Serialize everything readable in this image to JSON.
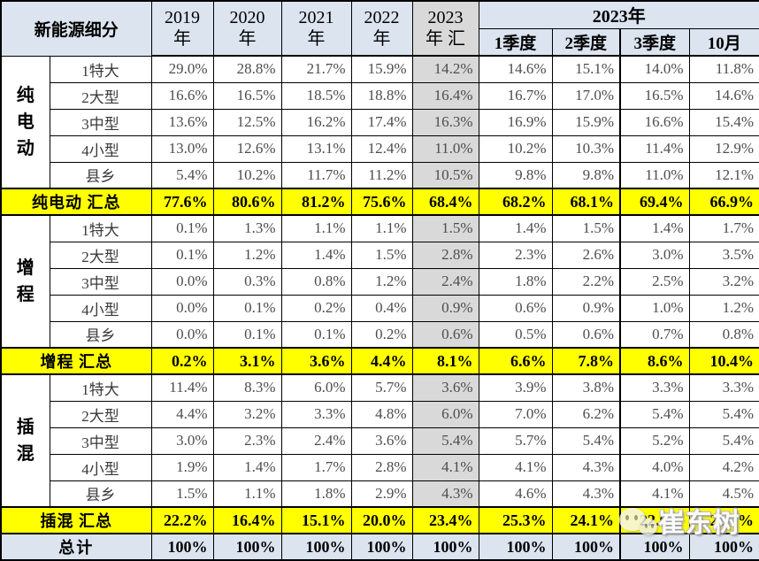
{
  "chart_data": {
    "type": "table",
    "header": {
      "corner": "新能源细分",
      "years": [
        {
          "line1": "2019",
          "line2": "年"
        },
        {
          "line1": "2020",
          "line2": "年"
        },
        {
          "line1": "2021",
          "line2": "年"
        },
        {
          "line1": "2022",
          "line2": "年"
        },
        {
          "line1": "2023",
          "line2": "年 汇"
        }
      ],
      "span2023": {
        "label": "2023年",
        "subs": [
          "1季度",
          "2季度",
          "3季度",
          "10月"
        ]
      }
    },
    "columns": [
      "2019年",
      "2020年",
      "2021年",
      "2022年",
      "2023年汇",
      "2023年1季度",
      "2023年2季度",
      "2023年3季度",
      "2023年10月"
    ],
    "groups": [
      {
        "id": "bev",
        "label": "纯电动",
        "rows": [
          {
            "label": "1特大",
            "values": [
              "29.0%",
              "28.8%",
              "21.7%",
              "15.9%",
              "14.2%",
              "14.6%",
              "15.1%",
              "14.0%",
              "11.8%"
            ]
          },
          {
            "label": "2大型",
            "values": [
              "16.6%",
              "16.5%",
              "18.5%",
              "18.8%",
              "16.4%",
              "16.7%",
              "17.0%",
              "16.5%",
              "14.6%"
            ]
          },
          {
            "label": "3中型",
            "values": [
              "13.6%",
              "12.5%",
              "16.2%",
              "17.4%",
              "16.3%",
              "16.9%",
              "15.9%",
              "16.6%",
              "15.4%"
            ]
          },
          {
            "label": "4小型",
            "values": [
              "13.0%",
              "12.6%",
              "13.1%",
              "12.4%",
              "11.0%",
              "10.2%",
              "10.3%",
              "11.4%",
              "12.9%"
            ]
          },
          {
            "label": "县乡",
            "values": [
              "5.4%",
              "10.2%",
              "11.7%",
              "11.2%",
              "10.5%",
              "9.8%",
              "9.8%",
              "11.0%",
              "12.1%"
            ]
          }
        ],
        "summary": {
          "label": "纯电动 汇总",
          "values": [
            "77.6%",
            "80.6%",
            "81.2%",
            "75.6%",
            "68.4%",
            "68.2%",
            "68.1%",
            "69.4%",
            "66.9%"
          ]
        }
      },
      {
        "id": "erev",
        "label": "增程",
        "rows": [
          {
            "label": "1特大",
            "values": [
              "0.1%",
              "1.3%",
              "1.1%",
              "1.1%",
              "1.5%",
              "1.4%",
              "1.5%",
              "1.4%",
              "1.7%"
            ]
          },
          {
            "label": "2大型",
            "values": [
              "0.1%",
              "1.2%",
              "1.4%",
              "1.5%",
              "2.8%",
              "2.3%",
              "2.6%",
              "3.0%",
              "3.5%"
            ]
          },
          {
            "label": "3中型",
            "values": [
              "0.0%",
              "0.3%",
              "0.8%",
              "1.2%",
              "2.4%",
              "1.8%",
              "2.2%",
              "2.5%",
              "3.2%"
            ]
          },
          {
            "label": "4小型",
            "values": [
              "0.0%",
              "0.1%",
              "0.2%",
              "0.4%",
              "0.9%",
              "0.6%",
              "0.9%",
              "1.0%",
              "1.2%"
            ]
          },
          {
            "label": "县乡",
            "values": [
              "0.0%",
              "0.1%",
              "0.1%",
              "0.2%",
              "0.6%",
              "0.5%",
              "0.6%",
              "0.7%",
              "0.8%"
            ]
          }
        ],
        "summary": {
          "label": "增程 汇总",
          "values": [
            "0.2%",
            "3.1%",
            "3.6%",
            "4.4%",
            "8.1%",
            "6.6%",
            "7.8%",
            "8.6%",
            "10.4%"
          ]
        }
      },
      {
        "id": "phev",
        "label": "插混",
        "rows": [
          {
            "label": "1特大",
            "values": [
              "11.4%",
              "8.3%",
              "6.0%",
              "5.7%",
              "3.6%",
              "3.9%",
              "3.8%",
              "3.3%",
              "3.3%"
            ]
          },
          {
            "label": "2大型",
            "values": [
              "4.4%",
              "3.2%",
              "3.3%",
              "4.8%",
              "6.0%",
              "7.0%",
              "6.2%",
              "5.4%",
              "5.4%"
            ]
          },
          {
            "label": "3中型",
            "values": [
              "3.0%",
              "2.3%",
              "2.4%",
              "3.6%",
              "5.4%",
              "5.7%",
              "5.4%",
              "5.2%",
              "5.4%"
            ]
          },
          {
            "label": "4小型",
            "values": [
              "1.9%",
              "1.4%",
              "1.7%",
              "2.8%",
              "4.1%",
              "4.1%",
              "4.3%",
              "4.0%",
              "4.2%"
            ]
          },
          {
            "label": "县乡",
            "values": [
              "1.5%",
              "1.1%",
              "1.8%",
              "2.9%",
              "4.3%",
              "4.6%",
              "4.3%",
              "4.1%",
              "4.5%"
            ]
          }
        ],
        "summary": {
          "label": "插混 汇总",
          "values": [
            "22.2%",
            "16.4%",
            "15.1%",
            "20.0%",
            "23.4%",
            "25.3%",
            "24.1%",
            "22.0%",
            "22.7%"
          ]
        }
      }
    ],
    "total": {
      "label": "总计",
      "values": [
        "100%",
        "100%",
        "100%",
        "100%",
        "100%",
        "100%",
        "100%",
        "100%",
        "100%"
      ]
    }
  },
  "watermark": {
    "text": "崔东树",
    "icon": "wechat-chat-bubbles-icon"
  },
  "colors": {
    "header_bg": "#dce4f0",
    "shade_bg": "#d9d9d9",
    "summary_bg": "#ffff00",
    "total_bg": "#dce4f0",
    "grid": "#000000",
    "data_text": "#4d4d4d"
  }
}
